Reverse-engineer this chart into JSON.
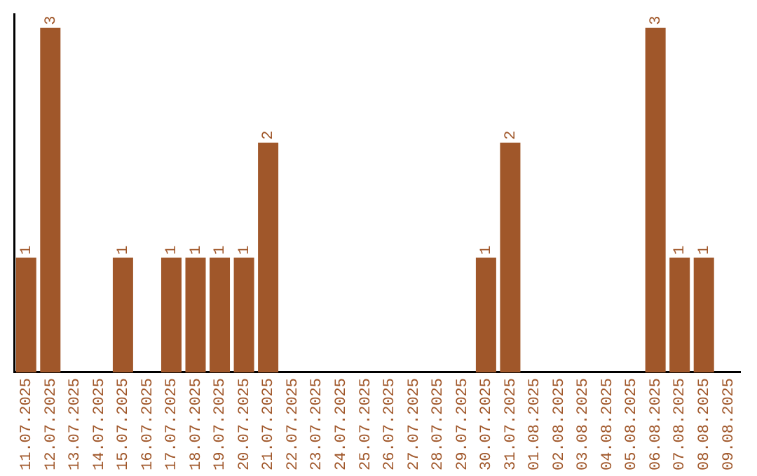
{
  "chart_data": {
    "type": "bar",
    "categories": [
      "11.07.2025",
      "12.07.2025",
      "13.07.2025",
      "14.07.2025",
      "15.07.2025",
      "16.07.2025",
      "17.07.2025",
      "18.07.2025",
      "19.07.2025",
      "20.07.2025",
      "21.07.2025",
      "22.07.2025",
      "23.07.2025",
      "24.07.2025",
      "25.07.2025",
      "26.07.2025",
      "27.07.2025",
      "28.07.2025",
      "29.07.2025",
      "30.07.2025",
      "31.07.2025",
      "01.08.2025",
      "02.08.2025",
      "03.08.2025",
      "04.08.2025",
      "05.08.2025",
      "06.08.2025",
      "07.08.2025",
      "08.08.2025",
      "09.08.2025"
    ],
    "values": [
      1,
      3,
      0,
      0,
      1,
      0,
      1,
      1,
      1,
      1,
      2,
      0,
      0,
      0,
      0,
      0,
      0,
      0,
      0,
      1,
      2,
      0,
      0,
      0,
      0,
      0,
      3,
      1,
      1,
      0
    ],
    "value_labels": [
      "1",
      "3",
      null,
      null,
      "1",
      null,
      "1",
      "1",
      "1",
      "1",
      "2",
      null,
      null,
      null,
      null,
      null,
      null,
      null,
      null,
      "1",
      "2",
      null,
      null,
      null,
      null,
      null,
      "3",
      "1",
      "1",
      null
    ],
    "color": "#a0572a",
    "ylim": [
      0,
      3.12
    ],
    "tick_labels": "x",
    "grid": false,
    "legend": false
  }
}
